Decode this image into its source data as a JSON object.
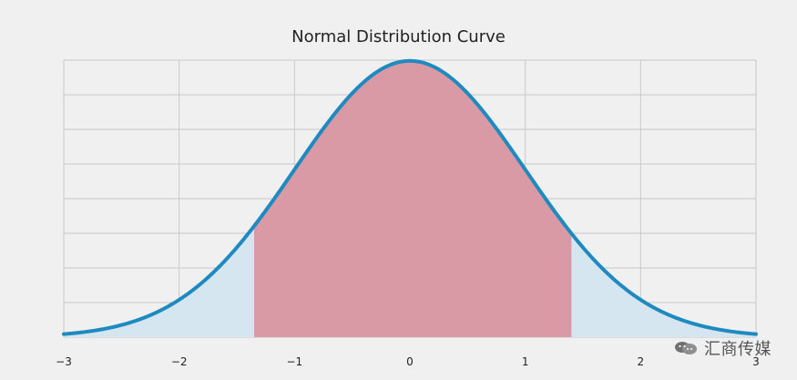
{
  "chart_data": {
    "type": "area",
    "title": "Normal Distribution Curve",
    "xlabel": "",
    "ylabel": "",
    "xlim": [
      -3,
      3
    ],
    "ylim": [
      0,
      0.4
    ],
    "grid": true,
    "x_ticks": [
      -3,
      -2,
      -1,
      0,
      1,
      2,
      3
    ],
    "x_tick_labels": [
      "−3",
      "−2",
      "−1",
      "0",
      "1",
      "2",
      "3"
    ],
    "curve": {
      "mean": 0,
      "std": 1,
      "samples": [
        [
          -3.0,
          0.004
        ],
        [
          -2.5,
          0.018
        ],
        [
          -2.0,
          0.054
        ],
        [
          -1.5,
          0.13
        ],
        [
          -1.0,
          0.242
        ],
        [
          -0.5,
          0.352
        ],
        [
          0.0,
          0.399
        ],
        [
          0.5,
          0.352
        ],
        [
          1.0,
          0.242
        ],
        [
          1.5,
          0.13
        ],
        [
          2.0,
          0.054
        ],
        [
          2.5,
          0.018
        ],
        [
          3.0,
          0.004
        ]
      ]
    },
    "shaded_region": {
      "from": -1.35,
      "to": 1.4
    },
    "colors": {
      "curve": "#1f8ac0",
      "tail_fill": "#d6e6f1",
      "center_fill": "#d99aa6",
      "grid": "#c9c9c9",
      "background": "#f0f0f0"
    }
  },
  "watermark": {
    "text": "汇商传媒",
    "icon": "wechat-icon"
  }
}
